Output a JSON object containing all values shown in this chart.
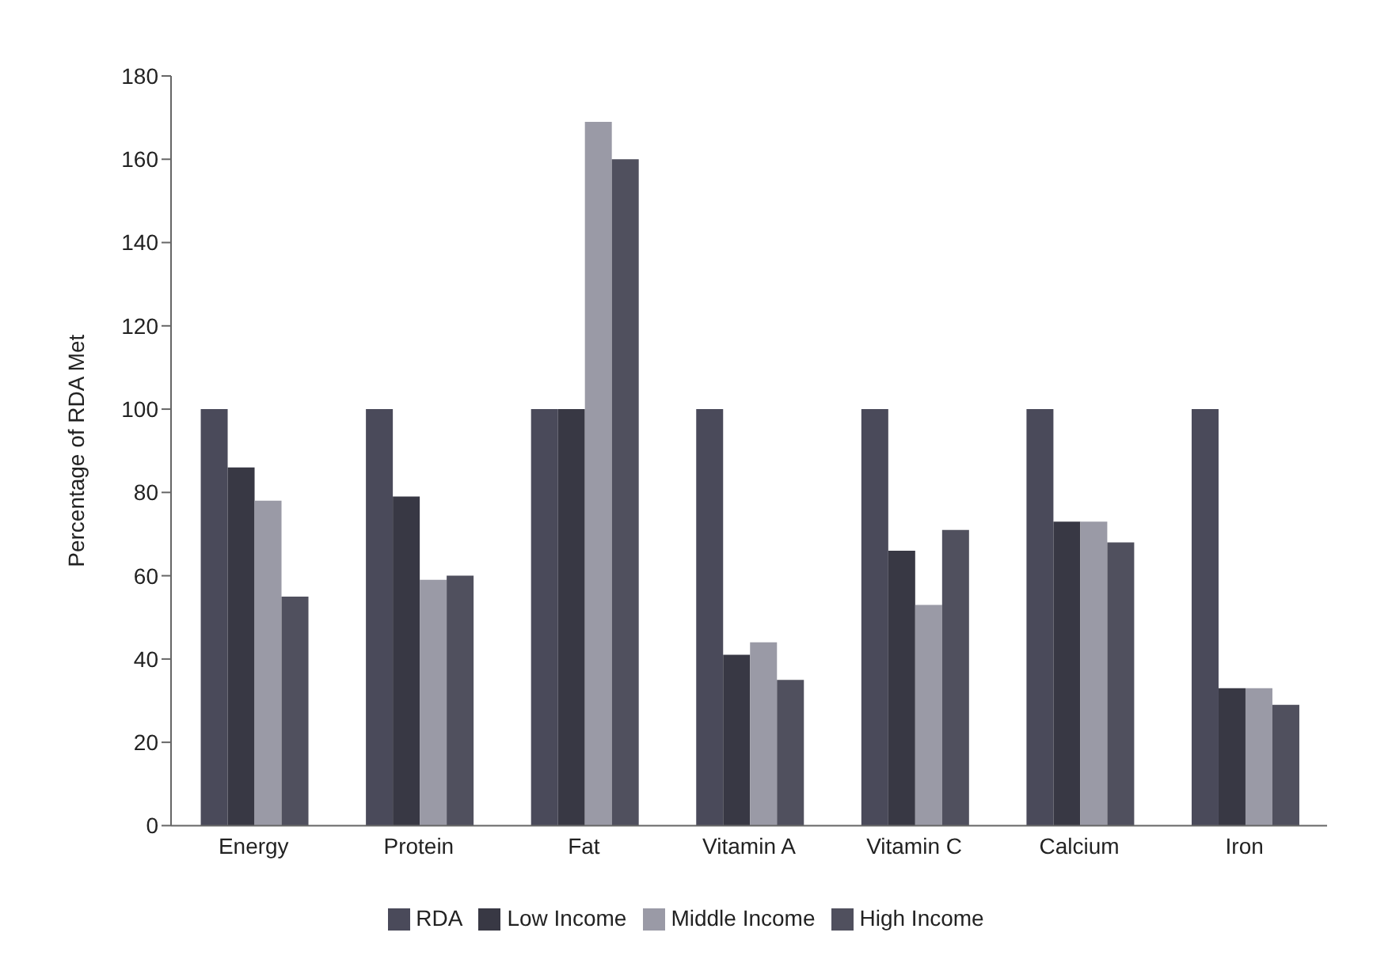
{
  "chart_data": {
    "type": "bar",
    "ylabel": "Percentage of RDA Met",
    "categories": [
      "Energy",
      "Protein",
      "Fat",
      "Vitamin A",
      "Vitamin C",
      "Calcium",
      "Iron"
    ],
    "series": [
      {
        "name": "RDA",
        "color": "#4a4a5a",
        "values": [
          100,
          100,
          100,
          100,
          100,
          100,
          100
        ]
      },
      {
        "name": "Low Income",
        "color": "#383844",
        "values": [
          86,
          79,
          100,
          41,
          66,
          73,
          33
        ]
      },
      {
        "name": "Middle Income",
        "color": "#9a9aa6",
        "values": [
          78,
          59,
          169,
          44,
          53,
          73,
          33
        ]
      },
      {
        "name": "High Income",
        "color": "#50505e",
        "values": [
          55,
          60,
          160,
          35,
          71,
          68,
          29
        ]
      }
    ],
    "ylim": [
      0,
      180
    ],
    "yticks": [
      0,
      20,
      40,
      60,
      80,
      100,
      120,
      140,
      160,
      180
    ],
    "grid": false,
    "legend": "bottom"
  }
}
